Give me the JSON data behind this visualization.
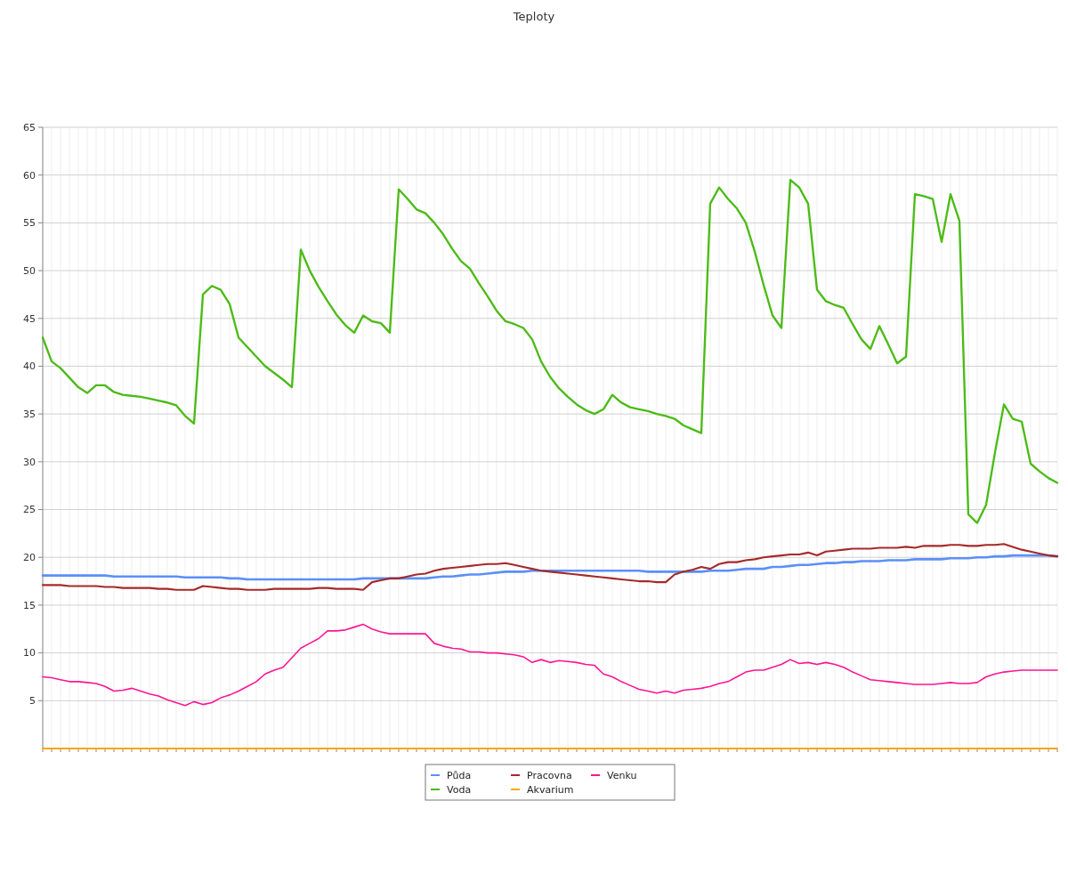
{
  "chart_data": {
    "type": "line",
    "title": "Teploty",
    "categories": [
      null,
      null,
      null,
      null,
      null,
      null,
      null,
      null,
      null,
      null,
      null,
      null,
      null,
      null,
      null,
      null,
      null,
      null,
      null,
      null,
      null,
      null,
      null,
      null,
      null,
      null,
      null,
      null,
      null,
      null,
      null,
      null,
      null,
      null,
      null,
      null,
      null,
      null,
      null,
      null,
      null,
      null,
      null,
      null,
      null,
      null,
      null,
      null,
      null,
      null,
      null,
      null,
      null,
      null,
      null,
      null,
      null,
      null,
      null,
      null,
      null,
      null,
      null,
      null,
      null,
      null,
      null,
      null,
      null,
      null,
      null,
      null,
      null,
      null,
      null,
      null,
      null,
      null,
      null,
      null,
      null,
      null,
      null,
      null,
      null,
      null,
      null,
      null,
      null,
      null,
      null,
      null,
      null,
      null,
      null,
      null,
      null,
      null,
      null,
      null,
      null,
      null,
      null,
      null,
      null,
      null,
      null,
      null,
      null,
      null,
      null,
      null,
      null,
      null,
      null
    ],
    "series": [
      {
        "name": "Půda",
        "color": "#5b8ff9",
        "values": [
          18.1,
          18.1,
          18.1,
          18.1,
          18.1,
          18.1,
          18.1,
          18.1,
          18.0,
          18.0,
          18.0,
          18.0,
          18.0,
          18.0,
          18.0,
          18.0,
          17.9,
          17.9,
          17.9,
          17.9,
          17.9,
          17.8,
          17.8,
          17.7,
          17.7,
          17.7,
          17.7,
          17.7,
          17.7,
          17.7,
          17.7,
          17.7,
          17.7,
          17.7,
          17.7,
          17.7,
          17.8,
          17.8,
          17.8,
          17.8,
          17.8,
          17.8,
          17.8,
          17.8,
          17.9,
          18.0,
          18.0,
          18.1,
          18.2,
          18.2,
          18.3,
          18.4,
          18.5,
          18.5,
          18.5,
          18.6,
          18.6,
          18.6,
          18.6,
          18.6,
          18.6,
          18.6,
          18.6,
          18.6,
          18.6,
          18.6,
          18.6,
          18.6,
          18.5,
          18.5,
          18.5,
          18.5,
          18.5,
          18.5,
          18.5,
          18.6,
          18.6,
          18.6,
          18.7,
          18.8,
          18.8,
          18.8,
          19.0,
          19.0,
          19.1,
          19.2,
          19.2,
          19.3,
          19.4,
          19.4,
          19.5,
          19.5,
          19.6,
          19.6,
          19.6,
          19.7,
          19.7,
          19.7,
          19.8,
          19.8,
          19.8,
          19.8,
          19.9,
          19.9,
          19.9,
          20.0,
          20.0,
          20.1,
          20.1,
          20.2,
          20.2,
          20.2,
          20.2,
          20.2,
          20.1
        ]
      },
      {
        "name": "Voda",
        "color": "#4cbb17",
        "values": [
          43,
          40.5,
          39.8,
          38.8,
          37.8,
          37.2,
          38.0,
          38.0,
          37.3,
          37.0,
          36.9,
          36.8,
          36.6,
          36.4,
          36.2,
          35.9,
          34.8,
          34.0,
          47.5,
          48.4,
          48.0,
          46.5,
          43.0,
          42.0,
          41.0,
          40.0,
          39.3,
          38.6,
          37.8,
          52.2,
          50.0,
          48.3,
          46.8,
          45.4,
          44.3,
          43.5,
          45.3,
          44.7,
          44.5,
          43.5,
          58.5,
          57.5,
          56.4,
          56.0,
          55.0,
          53.8,
          52.3,
          51.0,
          50.2,
          48.7,
          47.3,
          45.8,
          44.7,
          44.4,
          44.0,
          42.8,
          40.5,
          38.9,
          37.7,
          36.8,
          36.0,
          35.4,
          35.0,
          35.5,
          37.0,
          36.2,
          35.7,
          35.5,
          35.3,
          35.0,
          34.8,
          34.5,
          33.8,
          33.4,
          33.0,
          57.0,
          58.7,
          57.5,
          56.5,
          55.0,
          52.0,
          48.5,
          45.3,
          44.0,
          59.5,
          58.7,
          57.0,
          48.0,
          46.8,
          46.4,
          46.1,
          44.4,
          42.8,
          41.8,
          44.2,
          42.3,
          40.3,
          41.0,
          58.0,
          57.8,
          57.5,
          53.0,
          58.0,
          55.2,
          24.5,
          23.6,
          25.5,
          31.0,
          36.0,
          34.5,
          34.2,
          29.8,
          29.0,
          28.3,
          27.8
        ]
      },
      {
        "name": "Pracovna",
        "color": "#a52a2a",
        "values": [
          17.1,
          17.1,
          17.1,
          17.0,
          17.0,
          17.0,
          17.0,
          16.9,
          16.9,
          16.8,
          16.8,
          16.8,
          16.8,
          16.7,
          16.7,
          16.6,
          16.6,
          16.6,
          17.0,
          16.9,
          16.8,
          16.7,
          16.7,
          16.6,
          16.6,
          16.6,
          16.7,
          16.7,
          16.7,
          16.7,
          16.7,
          16.8,
          16.8,
          16.7,
          16.7,
          16.7,
          16.6,
          17.4,
          17.6,
          17.8,
          17.8,
          18.0,
          18.2,
          18.3,
          18.6,
          18.8,
          18.9,
          19.0,
          19.1,
          19.2,
          19.3,
          19.3,
          19.4,
          19.2,
          19.0,
          18.8,
          18.6,
          18.5,
          18.4,
          18.3,
          18.2,
          18.1,
          18.0,
          17.9,
          17.8,
          17.7,
          17.6,
          17.5,
          17.5,
          17.4,
          17.4,
          18.2,
          18.5,
          18.7,
          19.0,
          18.8,
          19.3,
          19.5,
          19.5,
          19.7,
          19.8,
          20.0,
          20.1,
          20.2,
          20.3,
          20.3,
          20.5,
          20.2,
          20.6,
          20.7,
          20.8,
          20.9,
          20.9,
          20.9,
          21.0,
          21.0,
          21.0,
          21.1,
          21.0,
          21.2,
          21.2,
          21.2,
          21.3,
          21.3,
          21.2,
          21.2,
          21.3,
          21.3,
          21.4,
          21.1,
          20.8,
          20.6,
          20.4,
          20.2,
          20.1
        ]
      },
      {
        "name": "Akvarium",
        "color": "#ffa500",
        "values": [
          0,
          0,
          0,
          0,
          0,
          0,
          0,
          0,
          0,
          0,
          0,
          0,
          0,
          0,
          0,
          0,
          0,
          0,
          0,
          0,
          0,
          0,
          0,
          0,
          0,
          0,
          0,
          0,
          0,
          0,
          0,
          0,
          0,
          0,
          0,
          0,
          0,
          0,
          0,
          0,
          0,
          0,
          0,
          0,
          0,
          0,
          0,
          0,
          0,
          0,
          0,
          0,
          0,
          0,
          0,
          0,
          0,
          0,
          0,
          0,
          0,
          0,
          0,
          0,
          0,
          0,
          0,
          0,
          0,
          0,
          0,
          0,
          0,
          0,
          0,
          0,
          0,
          0,
          0,
          0,
          0,
          0,
          0,
          0,
          0,
          0,
          0,
          0,
          0,
          0,
          0,
          0,
          0,
          0,
          0,
          0,
          0,
          0,
          0,
          0,
          0,
          0,
          0,
          0,
          0,
          0,
          0,
          0,
          0,
          0,
          0,
          0,
          0,
          0,
          0
        ]
      },
      {
        "name": "Venku",
        "color": "#ff1493",
        "values": [
          7.5,
          7.4,
          7.2,
          7.0,
          7.0,
          6.9,
          6.8,
          6.5,
          6.0,
          6.1,
          6.3,
          6.0,
          5.7,
          5.5,
          5.1,
          4.8,
          4.5,
          4.9,
          4.6,
          4.8,
          5.3,
          5.6,
          6.0,
          6.5,
          7.0,
          7.8,
          8.2,
          8.5,
          9.5,
          10.5,
          11.0,
          11.5,
          12.3,
          12.3,
          12.4,
          12.7,
          13.0,
          12.5,
          12.2,
          12.0,
          12.0,
          12.0,
          12.0,
          12.0,
          11.0,
          10.7,
          10.5,
          10.4,
          10.1,
          10.1,
          10.0,
          10.0,
          9.9,
          9.8,
          9.6,
          9.0,
          9.3,
          9.0,
          9.2,
          9.1,
          9.0,
          8.8,
          8.7,
          7.8,
          7.5,
          7.0,
          6.6,
          6.2,
          6.0,
          5.8,
          6.0,
          5.8,
          6.1,
          6.2,
          6.3,
          6.5,
          6.8,
          7.0,
          7.5,
          8.0,
          8.2,
          8.2,
          8.5,
          8.8,
          9.3,
          8.9,
          9.0,
          8.8,
          9.0,
          8.8,
          8.5,
          8.0,
          7.6,
          7.2,
          7.1,
          7.0,
          6.9,
          6.8,
          6.7,
          6.7,
          6.7,
          6.8,
          6.9,
          6.8,
          6.8,
          6.9,
          7.5,
          7.8,
          8.0,
          8.1,
          8.2,
          8.2,
          8.2,
          8.2,
          8.2
        ]
      }
    ],
    "ylim": [
      0,
      65
    ],
    "yticks": [
      5,
      10,
      15,
      20,
      25,
      30,
      35,
      40,
      45,
      50,
      55,
      60,
      65
    ],
    "grid": true,
    "legend": "bottom"
  }
}
